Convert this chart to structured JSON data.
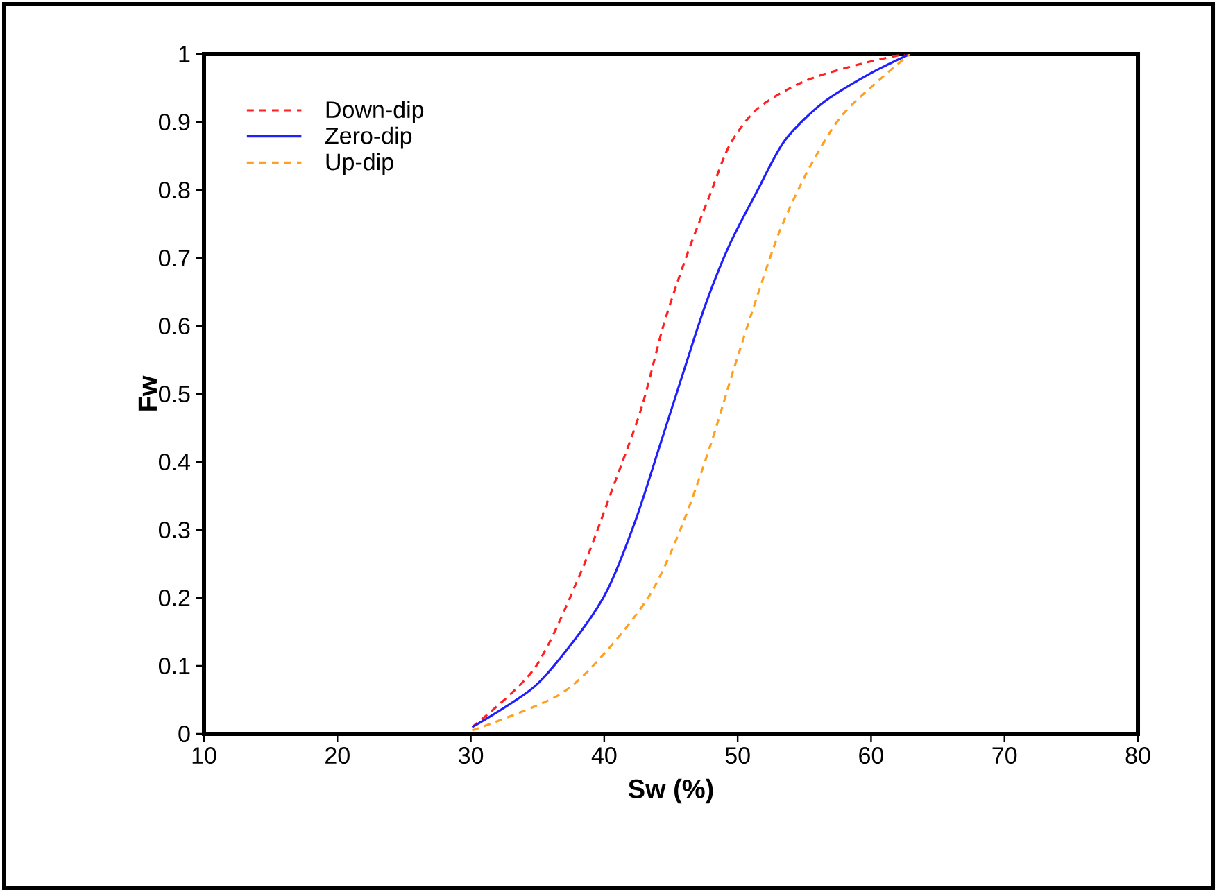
{
  "chart_data": {
    "type": "line",
    "xlabel": "Sw  (%)",
    "ylabel": "Fw",
    "xlim": [
      10,
      80
    ],
    "ylim": [
      0,
      1
    ],
    "xticks": [
      10,
      20,
      30,
      40,
      50,
      60,
      70,
      80
    ],
    "yticks": [
      0,
      0.1,
      0.2,
      0.3,
      0.4,
      0.5,
      0.6,
      0.7,
      0.8,
      0.9,
      1
    ],
    "grid": false,
    "legend": "top left",
    "marker": "none",
    "series": [
      {
        "name": "Down-dip",
        "color": "#ff2020",
        "line_style": "dashed",
        "x": [
          30.1,
          34.8,
          38.3,
          40.7,
          42.8,
          44.5,
          46.3,
          48.0,
          49.4,
          51.5,
          55.0,
          59.1,
          62.5
        ],
        "values": [
          0.01,
          0.097,
          0.24,
          0.365,
          0.48,
          0.605,
          0.71,
          0.797,
          0.866,
          0.92,
          0.96,
          0.985,
          1.0
        ]
      },
      {
        "name": "Zero-dip",
        "color": "#2020ff",
        "line_style": "solid",
        "x": [
          30.1,
          34.8,
          38.3,
          40.3,
          42.4,
          44.1,
          45.9,
          47.6,
          49.4,
          51.5,
          53.5,
          56.3,
          59.8,
          62.9
        ],
        "values": [
          0.01,
          0.07,
          0.152,
          0.214,
          0.317,
          0.42,
          0.53,
          0.632,
          0.72,
          0.8,
          0.872,
          0.927,
          0.97,
          1.0
        ]
      },
      {
        "name": "Up-dip",
        "color": "#ffa020",
        "line_style": "dashed",
        "x": [
          30.1,
          36.5,
          40.0,
          43.5,
          45.9,
          48.0,
          49.7,
          51.5,
          53.2,
          55.3,
          57.7,
          60.5,
          62.9
        ],
        "values": [
          0.005,
          0.056,
          0.118,
          0.207,
          0.31,
          0.427,
          0.536,
          0.646,
          0.742,
          0.83,
          0.907,
          0.96,
          1.0
        ]
      }
    ]
  }
}
